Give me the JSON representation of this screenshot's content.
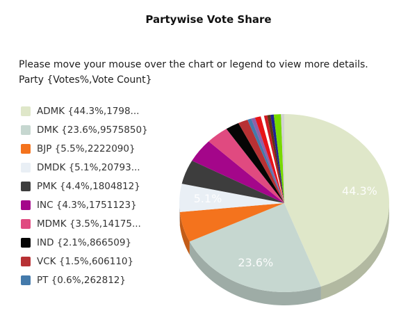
{
  "title": "Partywise Vote Share",
  "instructions": {
    "line1": "Please move your mouse over the chart or legend to view more details.",
    "line2": "Party {Votes%,Vote Count}"
  },
  "legend": {
    "items": [
      {
        "party": "ADMK",
        "label": "ADMK {44.3%,1798...",
        "color": "#dfe7c9"
      },
      {
        "party": "DMK",
        "label": "DMK {23.6%,9575850}",
        "color": "#c6d7d0"
      },
      {
        "party": "BJP",
        "label": "BJP {5.5%,2222090}",
        "color": "#f4731d"
      },
      {
        "party": "DMDK",
        "label": "DMDK {5.1%,20793...",
        "color": "#e9eff5"
      },
      {
        "party": "PMK",
        "label": "PMK {4.4%,1804812}",
        "color": "#3d3d3d"
      },
      {
        "party": "INC",
        "label": "INC {4.3%,1751123}",
        "color": "#a4068a"
      },
      {
        "party": "MDMK",
        "label": "MDMK {3.5%,14175...",
        "color": "#e04a80"
      },
      {
        "party": "IND",
        "label": "IND {2.1%,866509}",
        "color": "#050505"
      },
      {
        "party": "VCK",
        "label": "VCK {1.5%,606110}",
        "color": "#b73134"
      },
      {
        "party": "PT",
        "label": "PT {0.6%,262812}",
        "color": "#447aab"
      }
    ]
  },
  "chart_data": {
    "type": "pie",
    "title": "Partywise Vote Share",
    "value_format": "Party {Votes%,Vote Count}",
    "legend_position": "left",
    "style": "3d",
    "segments": [
      {
        "party": "ADMK",
        "pct": 44.3,
        "votes": "1798...",
        "color": "#dfe7c9",
        "pct_label": "44.3%"
      },
      {
        "party": "DMK",
        "pct": 23.6,
        "votes": "9575850",
        "color": "#c6d7d0",
        "pct_label": "23.6%"
      },
      {
        "party": "BJP",
        "pct": 5.5,
        "votes": "2222090",
        "color": "#f4731d",
        "pct_label": ""
      },
      {
        "party": "DMDK",
        "pct": 5.1,
        "votes": "20793...",
        "color": "#e9eff5",
        "pct_label": "5.1%"
      },
      {
        "party": "PMK",
        "pct": 4.4,
        "votes": "1804812",
        "color": "#3d3d3d",
        "pct_label": ""
      },
      {
        "party": "INC",
        "pct": 4.3,
        "votes": "1751123",
        "color": "#a4068a",
        "pct_label": ""
      },
      {
        "party": "MDMK",
        "pct": 3.5,
        "votes": "14175...",
        "color": "#e04a80",
        "pct_label": ""
      },
      {
        "party": "IND",
        "pct": 2.1,
        "votes": "866509",
        "color": "#050505",
        "pct_label": ""
      },
      {
        "party": "VCK",
        "pct": 1.5,
        "votes": "606110",
        "color": "#b73134",
        "pct_label": ""
      },
      {
        "party": "PT",
        "pct": 0.6,
        "votes": "262812",
        "color": "#447aab",
        "pct_label": ""
      },
      {
        "party": "",
        "pct": 0.6,
        "votes": "",
        "color": "#9060a8",
        "pct_label": ""
      },
      {
        "party": "",
        "pct": 0.9,
        "votes": "",
        "color": "#e81318",
        "pct_label": ""
      },
      {
        "party": "",
        "pct": 0.5,
        "votes": "",
        "color": "#ffffff",
        "pct_label": ""
      },
      {
        "party": "",
        "pct": 0.5,
        "votes": "",
        "color": "#cf1a22",
        "pct_label": ""
      },
      {
        "party": "",
        "pct": 0.5,
        "votes": "",
        "color": "#5c3317",
        "pct_label": ""
      },
      {
        "party": "",
        "pct": 0.5,
        "votes": "",
        "color": "#1f1f96",
        "pct_label": ""
      },
      {
        "party": "",
        "pct": 1.1,
        "votes": "",
        "color": "#77d800",
        "pct_label": ""
      },
      {
        "party": "",
        "pct": 0.5,
        "votes": "",
        "color": "#d2d2d2",
        "pct_label": ""
      }
    ]
  }
}
